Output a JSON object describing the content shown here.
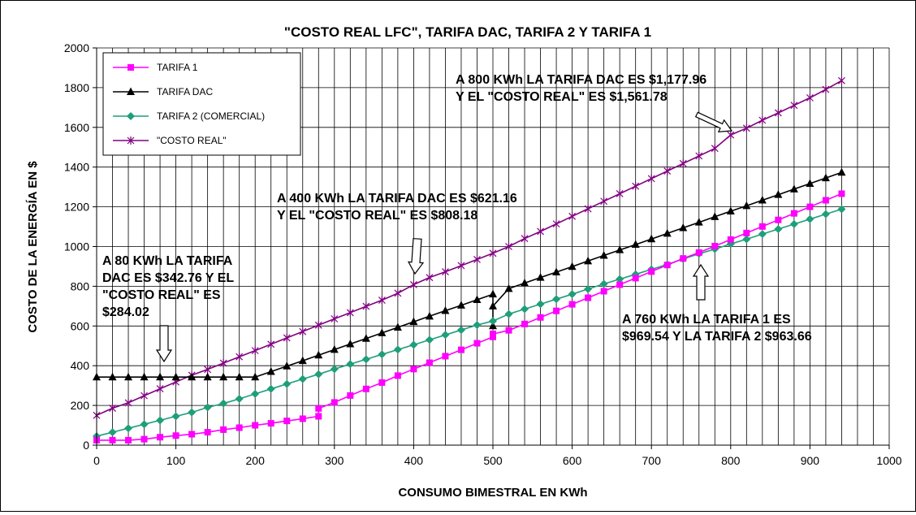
{
  "chart_data": {
    "type": "line",
    "title": "\"COSTO REAL LFC\", TARIFA DAC, TARIFA 2 Y TARIFA 1",
    "xlabel": "CONSUMO BIMESTRAL EN KWh",
    "ylabel": "COSTO DE LA ENERGÍA EN $",
    "xlim": [
      0,
      1000
    ],
    "ylim": [
      0,
      2000
    ],
    "xticks": [
      "0",
      "100",
      "200",
      "300",
      "400",
      "500",
      "600",
      "700",
      "800",
      "900",
      "1000"
    ],
    "yticks": [
      "0",
      "200",
      "400",
      "600",
      "800",
      "1000",
      "1200",
      "1400",
      "1600",
      "1800",
      "2000"
    ],
    "grid": "vertical lines every 20 KWh, horizontal every 200",
    "legend_position": "top-left",
    "series": [
      {
        "name": "TARIFA 1",
        "color": "#ff00ff",
        "marker": "square",
        "points": [
          [
            0,
            25
          ],
          [
            20,
            25
          ],
          [
            40,
            25
          ],
          [
            60,
            30
          ],
          [
            80,
            40
          ],
          [
            100,
            48
          ],
          [
            120,
            55
          ],
          [
            140,
            65
          ],
          [
            160,
            78
          ],
          [
            180,
            88
          ],
          [
            200,
            100
          ],
          [
            220,
            110
          ],
          [
            240,
            122
          ],
          [
            260,
            133
          ],
          [
            280,
            145
          ],
          [
            280,
            185
          ],
          [
            300,
            215
          ],
          [
            320,
            250
          ],
          [
            340,
            283
          ],
          [
            360,
            315
          ],
          [
            380,
            350
          ],
          [
            400,
            383
          ],
          [
            420,
            415
          ],
          [
            440,
            448
          ],
          [
            460,
            480
          ],
          [
            480,
            513
          ],
          [
            500,
            545
          ],
          [
            500,
            560
          ],
          [
            520,
            578
          ],
          [
            540,
            610
          ],
          [
            560,
            643
          ],
          [
            580,
            676
          ],
          [
            600,
            709
          ],
          [
            620,
            742
          ],
          [
            640,
            775
          ],
          [
            660,
            808
          ],
          [
            680,
            841
          ],
          [
            700,
            874
          ],
          [
            720,
            907
          ],
          [
            740,
            940
          ],
          [
            760,
            969.54
          ],
          [
            780,
            1002
          ],
          [
            800,
            1035
          ],
          [
            820,
            1068
          ],
          [
            840,
            1101
          ],
          [
            860,
            1134
          ],
          [
            880,
            1167
          ],
          [
            900,
            1200
          ],
          [
            920,
            1233
          ],
          [
            940,
            1266
          ]
        ]
      },
      {
        "name": "TARIFA DAC",
        "color": "#000000",
        "marker": "triangle",
        "points": [
          [
            0,
            342.76
          ],
          [
            20,
            342.76
          ],
          [
            40,
            342.76
          ],
          [
            60,
            342.76
          ],
          [
            80,
            342.76
          ],
          [
            100,
            342.76
          ],
          [
            120,
            342.76
          ],
          [
            140,
            342.76
          ],
          [
            160,
            342.76
          ],
          [
            180,
            342.76
          ],
          [
            200,
            342.76
          ],
          [
            220,
            370
          ],
          [
            240,
            398
          ],
          [
            260,
            425
          ],
          [
            280,
            453
          ],
          [
            300,
            481
          ],
          [
            320,
            509
          ],
          [
            340,
            537
          ],
          [
            360,
            565
          ],
          [
            380,
            593
          ],
          [
            400,
            621.16
          ],
          [
            420,
            649
          ],
          [
            440,
            677
          ],
          [
            460,
            704
          ],
          [
            480,
            732
          ],
          [
            500,
            760
          ],
          [
            500,
            600
          ],
          [
            500,
            700
          ],
          [
            520,
            788
          ],
          [
            540,
            816
          ],
          [
            560,
            844
          ],
          [
            580,
            871
          ],
          [
            600,
            899
          ],
          [
            620,
            927
          ],
          [
            640,
            955
          ],
          [
            660,
            983
          ],
          [
            680,
            1010
          ],
          [
            700,
            1038
          ],
          [
            720,
            1066
          ],
          [
            740,
            1094
          ],
          [
            760,
            1122
          ],
          [
            780,
            1150
          ],
          [
            800,
            1177.96
          ],
          [
            820,
            1205
          ],
          [
            840,
            1233
          ],
          [
            860,
            1261
          ],
          [
            880,
            1289
          ],
          [
            900,
            1317
          ],
          [
            920,
            1345
          ],
          [
            940,
            1373
          ]
        ]
      },
      {
        "name": "TARIFA 2 (COMERCIAL)",
        "color": "#1f9e7a",
        "marker": "diamond",
        "points": [
          [
            0,
            45
          ],
          [
            20,
            65
          ],
          [
            40,
            85
          ],
          [
            60,
            105
          ],
          [
            80,
            125
          ],
          [
            100,
            145
          ],
          [
            120,
            165
          ],
          [
            140,
            190
          ],
          [
            160,
            210
          ],
          [
            180,
            233
          ],
          [
            200,
            258
          ],
          [
            220,
            283
          ],
          [
            240,
            308
          ],
          [
            260,
            333
          ],
          [
            280,
            357
          ],
          [
            300,
            383
          ],
          [
            320,
            408
          ],
          [
            340,
            432
          ],
          [
            360,
            457
          ],
          [
            380,
            481
          ],
          [
            400,
            505
          ],
          [
            420,
            530
          ],
          [
            440,
            555
          ],
          [
            460,
            580
          ],
          [
            480,
            605
          ],
          [
            500,
            625
          ],
          [
            520,
            660
          ],
          [
            540,
            685
          ],
          [
            560,
            710
          ],
          [
            580,
            735
          ],
          [
            600,
            760
          ],
          [
            620,
            786
          ],
          [
            640,
            812
          ],
          [
            660,
            836
          ],
          [
            680,
            860
          ],
          [
            700,
            885
          ],
          [
            720,
            910
          ],
          [
            740,
            937
          ],
          [
            760,
            963.66
          ],
          [
            780,
            987
          ],
          [
            800,
            1013
          ],
          [
            820,
            1037
          ],
          [
            840,
            1063
          ],
          [
            860,
            1088
          ],
          [
            880,
            1113
          ],
          [
            900,
            1138
          ],
          [
            920,
            1163
          ],
          [
            940,
            1188
          ]
        ]
      },
      {
        "name": "\"COSTO REAL\"",
        "color": "#800080",
        "marker": "star",
        "points": [
          [
            0,
            150
          ],
          [
            20,
            186
          ],
          [
            40,
            213
          ],
          [
            60,
            249
          ],
          [
            80,
            284.02
          ],
          [
            100,
            318
          ],
          [
            120,
            352
          ],
          [
            140,
            381
          ],
          [
            160,
            413
          ],
          [
            180,
            445
          ],
          [
            200,
            476
          ],
          [
            220,
            508
          ],
          [
            240,
            540
          ],
          [
            260,
            572
          ],
          [
            280,
            604
          ],
          [
            300,
            636
          ],
          [
            320,
            667
          ],
          [
            340,
            699
          ],
          [
            360,
            730
          ],
          [
            380,
            765
          ],
          [
            400,
            808.18
          ],
          [
            420,
            844
          ],
          [
            440,
            873
          ],
          [
            460,
            904
          ],
          [
            480,
            935
          ],
          [
            500,
            966
          ],
          [
            520,
            1000
          ],
          [
            540,
            1040
          ],
          [
            560,
            1076
          ],
          [
            580,
            1114
          ],
          [
            600,
            1152
          ],
          [
            620,
            1190
          ],
          [
            640,
            1228
          ],
          [
            660,
            1266
          ],
          [
            680,
            1304
          ],
          [
            700,
            1342
          ],
          [
            720,
            1380
          ],
          [
            740,
            1418
          ],
          [
            760,
            1456
          ],
          [
            780,
            1494
          ],
          [
            800,
            1561.78
          ],
          [
            820,
            1596
          ],
          [
            840,
            1636
          ],
          [
            860,
            1673
          ],
          [
            880,
            1711
          ],
          [
            900,
            1749
          ],
          [
            920,
            1791
          ],
          [
            940,
            1835
          ]
        ]
      }
    ],
    "annotations": [
      {
        "lines": [
          "A 800 KWh LA TARIFA DAC ES $1,177.96",
          "Y EL \"COSTO REAL\" ES $1,561.78"
        ]
      },
      {
        "lines": [
          "A 400 KWh LA TARIFA DAC ES $621.16",
          "Y EL \"COSTO REAL\" ES $808.18"
        ]
      },
      {
        "lines": [
          "A 80 KWh LA TARIFA",
          "DAC ES $342.76 Y EL",
          "\"COSTO REAL\" ES",
          "$284.02"
        ]
      },
      {
        "lines": [
          "A 760 KWh LA TARIFA 1 ES",
          "$969.54 Y LA TARIFA 2 $963.66"
        ]
      }
    ]
  }
}
